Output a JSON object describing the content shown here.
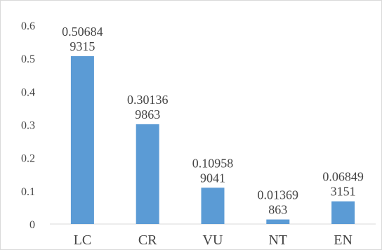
{
  "chart_data": {
    "type": "bar",
    "categories": [
      "LC",
      "CR",
      "VU",
      "NT",
      "EN"
    ],
    "values": [
      0.506849315,
      0.301369863,
      0.109589041,
      0.01369863,
      0.068493151
    ],
    "data_labels": [
      [
        "0.50684",
        "9315"
      ],
      [
        "0.30136",
        "9863"
      ],
      [
        "0.10958",
        "9041"
      ],
      [
        "0.01369",
        "863"
      ],
      [
        "0.06849",
        "3151"
      ]
    ],
    "y_ticks": [
      "0",
      "0.1",
      "0.2",
      "0.3",
      "0.4",
      "0.5",
      "0.6"
    ],
    "ylim": [
      0,
      0.6
    ],
    "grid": false,
    "legend": "none",
    "bar_color": "#5b9bd5",
    "axis_color": "#d9d9d9",
    "text_color": "#444444"
  }
}
